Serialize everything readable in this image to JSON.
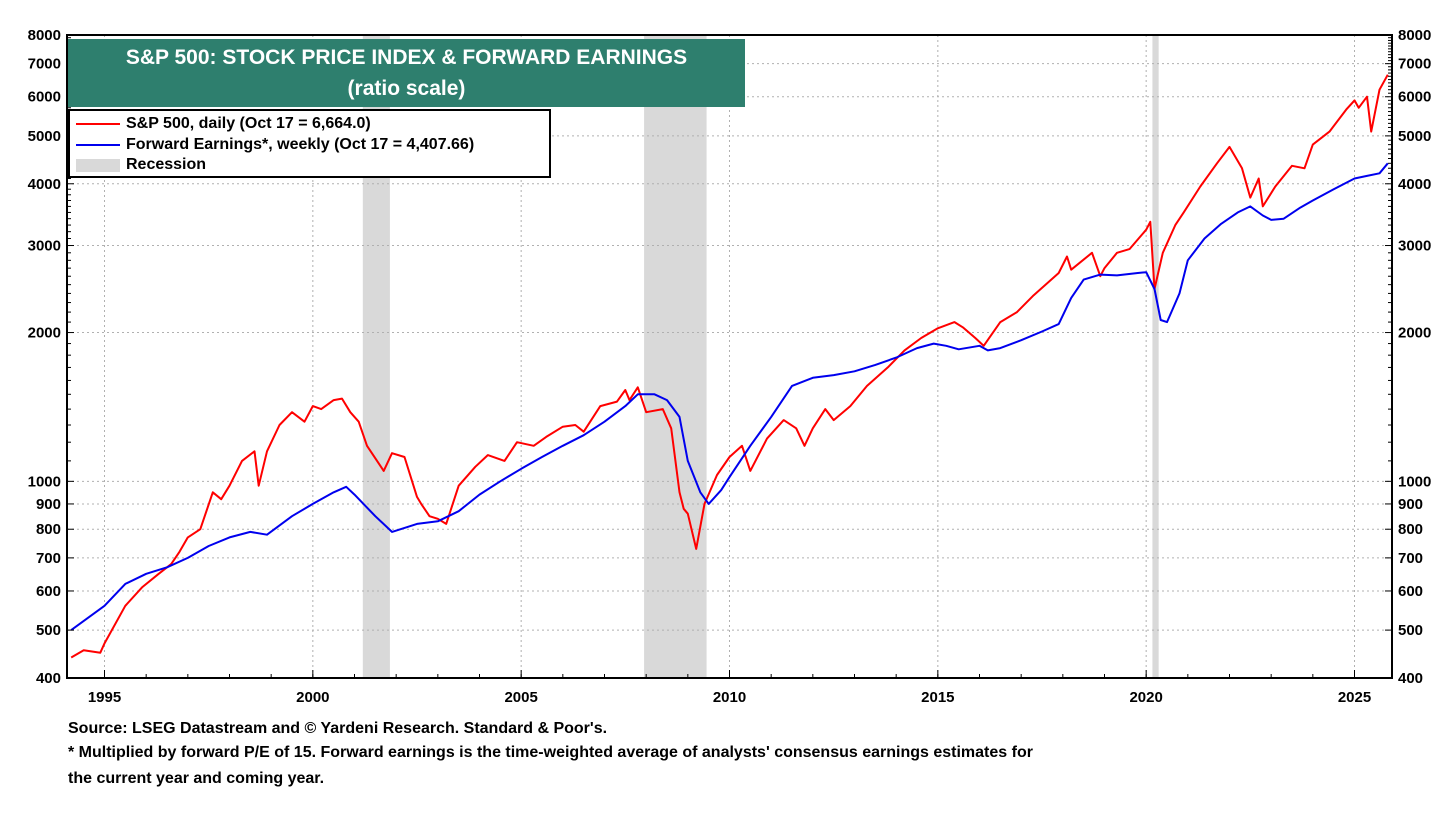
{
  "chart_data": {
    "type": "line",
    "title": "S&P 500: STOCK PRICE INDEX & FORWARD EARNINGS",
    "subtitle": "(ratio scale)",
    "y_scale": "log",
    "ylim": [
      400,
      8000
    ],
    "xlim": [
      1994.1,
      2025.9
    ],
    "x_ticks": [
      "1995",
      "2000",
      "2005",
      "2010",
      "2015",
      "2020",
      "2025"
    ],
    "y_ticks_labeled": [
      "400",
      "500",
      "600",
      "700",
      "800",
      "900",
      "1000",
      "2000",
      "3000",
      "4000",
      "5000",
      "6000",
      "7000",
      "8000"
    ],
    "grid": true,
    "legend_position": "top-left",
    "colors": {
      "sp500": "#ff0000",
      "earnings": "#0000ee",
      "recession": "#d9d9d9",
      "title_bg": "#2e7f6e"
    },
    "series": [
      {
        "name": "S&P 500, daily (Oct 17 = 6,664.0)",
        "key": "sp500",
        "x": [
          1994.2,
          1994.5,
          1994.9,
          1995.0,
          1995.5,
          1995.9,
          1996.3,
          1996.6,
          1996.8,
          1997.0,
          1997.3,
          1997.6,
          1997.8,
          1998.0,
          1998.3,
          1998.6,
          1998.7,
          1998.9,
          1999.2,
          1999.5,
          1999.8,
          2000.0,
          2000.2,
          2000.5,
          2000.7,
          2000.9,
          2001.1,
          2001.3,
          2001.7,
          2001.9,
          2002.2,
          2002.5,
          2002.6,
          2002.8,
          2003.0,
          2003.2,
          2003.5,
          2003.9,
          2004.2,
          2004.6,
          2004.9,
          2005.3,
          2005.6,
          2006.0,
          2006.3,
          2006.5,
          2006.9,
          2007.3,
          2007.5,
          2007.6,
          2007.8,
          2008.0,
          2008.4,
          2008.6,
          2008.8,
          2008.9,
          2009.0,
          2009.2,
          2009.4,
          2009.7,
          2010.0,
          2010.3,
          2010.5,
          2010.9,
          2011.3,
          2011.6,
          2011.8,
          2012.0,
          2012.3,
          2012.5,
          2012.9,
          2013.3,
          2013.8,
          2014.2,
          2014.6,
          2015.0,
          2015.4,
          2015.6,
          2015.9,
          2016.1,
          2016.5,
          2016.9,
          2017.3,
          2017.9,
          2018.1,
          2018.2,
          2018.7,
          2018.9,
          2019.0,
          2019.3,
          2019.6,
          2020.0,
          2020.1,
          2020.2,
          2020.4,
          2020.7,
          2020.9,
          2021.3,
          2021.7,
          2022.0,
          2022.3,
          2022.5,
          2022.7,
          2022.8,
          2023.1,
          2023.5,
          2023.8,
          2024.0,
          2024.4,
          2024.8,
          2025.0,
          2025.1,
          2025.3,
          2025.4,
          2025.6,
          2025.8
        ],
        "y": [
          440,
          455,
          450,
          470,
          560,
          610,
          650,
          680,
          720,
          770,
          800,
          950,
          920,
          980,
          1100,
          1150,
          980,
          1150,
          1300,
          1380,
          1320,
          1420,
          1400,
          1460,
          1470,
          1380,
          1320,
          1180,
          1050,
          1140,
          1120,
          930,
          900,
          850,
          840,
          820,
          980,
          1070,
          1130,
          1100,
          1200,
          1180,
          1230,
          1290,
          1300,
          1260,
          1420,
          1450,
          1530,
          1460,
          1550,
          1380,
          1400,
          1280,
          950,
          880,
          860,
          730,
          900,
          1030,
          1120,
          1180,
          1050,
          1220,
          1330,
          1280,
          1180,
          1280,
          1400,
          1330,
          1420,
          1560,
          1700,
          1840,
          1950,
          2040,
          2100,
          2050,
          1950,
          1880,
          2100,
          2200,
          2380,
          2640,
          2850,
          2680,
          2900,
          2600,
          2700,
          2900,
          2950,
          3230,
          3350,
          2450,
          2900,
          3300,
          3500,
          3950,
          4400,
          4750,
          4300,
          3750,
          4100,
          3600,
          3950,
          4350,
          4300,
          4800,
          5100,
          5650,
          5900,
          5700,
          6000,
          5100,
          6200,
          6650
        ]
      },
      {
        "name": "Forward Earnings*, weekly (Oct 17 = 4,407.66)",
        "key": "earnings",
        "x": [
          1994.2,
          1995.0,
          1995.5,
          1996.0,
          1996.5,
          1997.0,
          1997.5,
          1998.0,
          1998.5,
          1998.9,
          1999.5,
          2000.0,
          2000.5,
          2000.8,
          2001.0,
          2001.5,
          2001.9,
          2002.5,
          2003.0,
          2003.5,
          2004.0,
          2004.5,
          2005.0,
          2005.5,
          2006.0,
          2006.5,
          2007.0,
          2007.5,
          2007.8,
          2008.2,
          2008.5,
          2008.8,
          2009.0,
          2009.3,
          2009.5,
          2009.8,
          2010.0,
          2010.5,
          2011.0,
          2011.5,
          2012.0,
          2012.5,
          2013.0,
          2013.5,
          2014.0,
          2014.5,
          2014.9,
          2015.2,
          2015.5,
          2016.0,
          2016.2,
          2016.5,
          2017.0,
          2017.5,
          2017.9,
          2018.2,
          2018.5,
          2018.9,
          2019.3,
          2019.8,
          2020.0,
          2020.2,
          2020.35,
          2020.5,
          2020.8,
          2021.0,
          2021.4,
          2021.8,
          2022.2,
          2022.5,
          2022.8,
          2023.0,
          2023.3,
          2023.7,
          2024.0,
          2024.5,
          2025.0,
          2025.3,
          2025.6,
          2025.8
        ],
        "y": [
          500,
          560,
          620,
          650,
          670,
          700,
          740,
          770,
          790,
          780,
          850,
          900,
          950,
          975,
          940,
          850,
          790,
          820,
          830,
          870,
          940,
          1000,
          1060,
          1120,
          1180,
          1240,
          1320,
          1420,
          1500,
          1500,
          1460,
          1350,
          1100,
          950,
          900,
          960,
          1020,
          1180,
          1350,
          1560,
          1620,
          1640,
          1670,
          1720,
          1780,
          1860,
          1900,
          1880,
          1850,
          1880,
          1840,
          1860,
          1930,
          2010,
          2080,
          2350,
          2560,
          2620,
          2610,
          2640,
          2650,
          2450,
          2120,
          2100,
          2400,
          2800,
          3100,
          3320,
          3500,
          3600,
          3450,
          3380,
          3400,
          3580,
          3700,
          3900,
          4100,
          4150,
          4200,
          4400
        ]
      }
    ],
    "recessions": [
      {
        "start": 2001.2,
        "end": 2001.85
      },
      {
        "start": 2007.95,
        "end": 2009.45
      },
      {
        "start": 2020.15,
        "end": 2020.3
      }
    ]
  },
  "legend": {
    "sp500_label": "S&P 500, daily (Oct 17 = 6,664.0)",
    "earnings_label": "Forward Earnings*, weekly (Oct 17 = 4,407.66)",
    "recession_label": "Recession"
  },
  "footnotes": {
    "source": "Source: LSEG Datastream and © Yardeni Research. Standard & Poor's.",
    "note_line1": "* Multiplied by forward P/E of 15. Forward earnings is the time-weighted average of analysts' consensus earnings estimates for",
    "note_line2": "the current year and coming year."
  }
}
